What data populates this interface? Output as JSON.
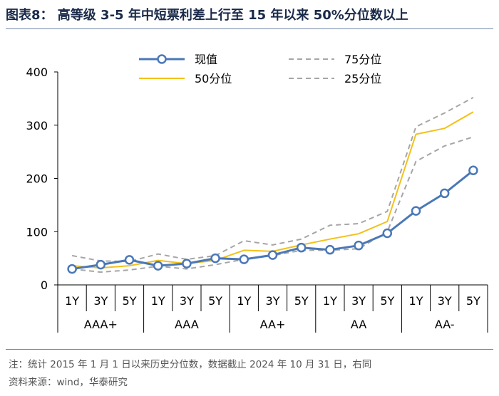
{
  "title": "图表8： 高等级 3-5 年中短票利差上行至 15 年以来 50%分位数以上",
  "footnote": "注：统计 2015 年 1 月 1 日以来历史分位数，数据截止 2024 年 10 月 31 日，右同",
  "source": "资料来源：wind，华泰研究",
  "chart_data": {
    "type": "line",
    "ylim": [
      0,
      400
    ],
    "yticks": [
      0,
      100,
      200,
      300,
      400
    ],
    "groups": [
      "AAA+",
      "AAA",
      "AA+",
      "AA",
      "AA-"
    ],
    "terms": [
      "1Y",
      "3Y",
      "5Y"
    ],
    "categories": [
      "AAA+ 1Y",
      "AAA+ 3Y",
      "AAA+ 5Y",
      "AAA 1Y",
      "AAA 3Y",
      "AAA 5Y",
      "AA+ 1Y",
      "AA+ 3Y",
      "AA+ 5Y",
      "AA 1Y",
      "AA 3Y",
      "AA 5Y",
      "AA- 1Y",
      "AA- 3Y",
      "AA- 5Y"
    ],
    "legend_position": "top",
    "series": [
      {
        "name": "现值",
        "color": "#4a78b8",
        "style": "solid-marker",
        "values": [
          30,
          38,
          47,
          36,
          40,
          50,
          48,
          56,
          70,
          66,
          74,
          97,
          139,
          172,
          215
        ]
      },
      {
        "name": "75分位",
        "color": "#a6a6a6",
        "style": "dashed",
        "values": [
          55,
          45,
          44,
          58,
          48,
          55,
          83,
          75,
          86,
          112,
          115,
          138,
          297,
          323,
          352
        ]
      },
      {
        "name": "50分位",
        "color": "#f2c11a",
        "style": "solid",
        "values": [
          36,
          32,
          36,
          46,
          40,
          46,
          65,
          63,
          75,
          86,
          96,
          119,
          283,
          294,
          325
        ]
      },
      {
        "name": "25分位",
        "color": "#a6a6a6",
        "style": "dashed",
        "values": [
          30,
          24,
          28,
          35,
          30,
          38,
          48,
          55,
          65,
          65,
          68,
          100,
          232,
          261,
          278
        ]
      }
    ]
  }
}
